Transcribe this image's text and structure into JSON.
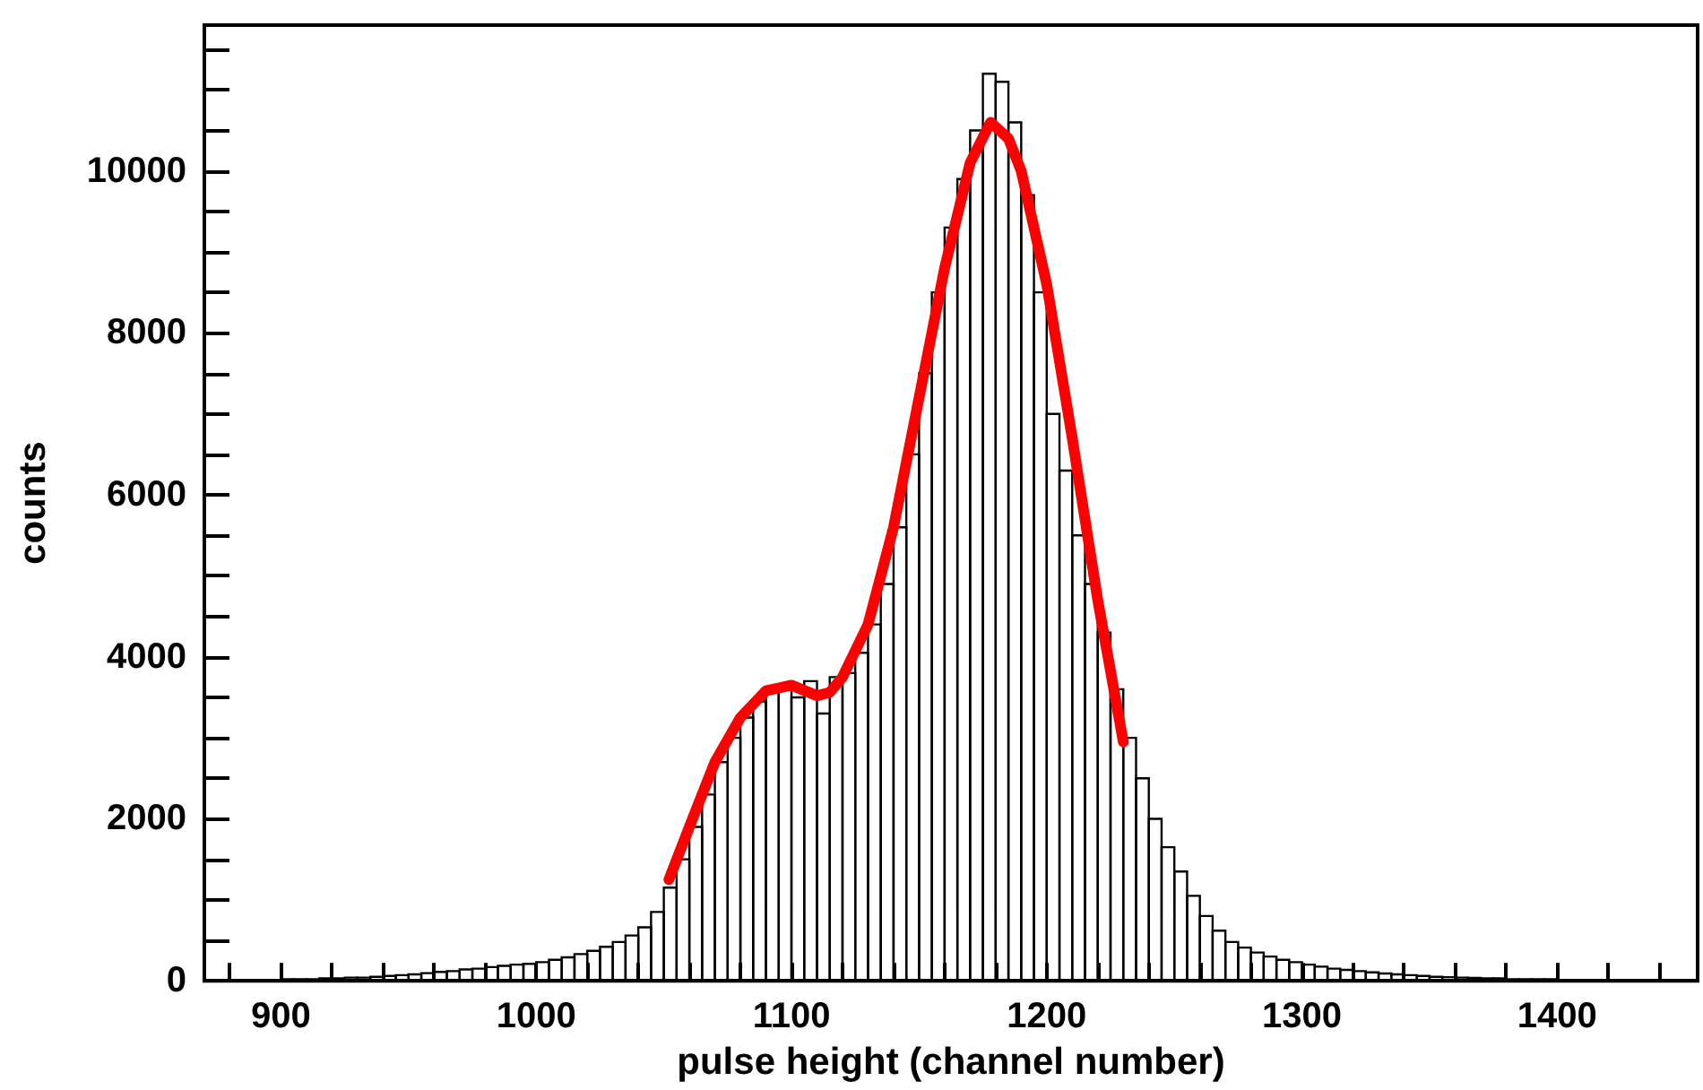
{
  "chart_data": {
    "type": "histogram",
    "xlabel": "pulse height (channel number)",
    "ylabel": "counts",
    "color": "#000000",
    "bins": [
      870,
      875,
      880,
      885,
      890,
      895,
      900,
      905,
      910,
      915,
      920,
      925,
      930,
      935,
      940,
      945,
      950,
      955,
      960,
      965,
      970,
      975,
      980,
      985,
      990,
      995,
      1000,
      1005,
      1010,
      1015,
      1020,
      1025,
      1030,
      1035,
      1040,
      1045,
      1050,
      1055,
      1060,
      1065,
      1070,
      1075,
      1080,
      1085,
      1090,
      1095,
      1100,
      1105,
      1110,
      1115,
      1120,
      1125,
      1130,
      1135,
      1140,
      1145,
      1150,
      1155,
      1160,
      1165,
      1170,
      1175,
      1180,
      1185,
      1190,
      1195,
      1200,
      1205,
      1210,
      1215,
      1220,
      1225,
      1230,
      1235,
      1240,
      1245,
      1250,
      1255,
      1260,
      1265,
      1270,
      1275,
      1280,
      1285,
      1290,
      1295,
      1300,
      1305,
      1310,
      1315,
      1320,
      1325,
      1330,
      1335,
      1340,
      1345,
      1350,
      1355,
      1360,
      1365,
      1370,
      1375,
      1380,
      1385,
      1390,
      1395,
      1400,
      1405,
      1410,
      1415,
      1420,
      1425,
      1430,
      1435,
      1440,
      1445,
      1450,
      1455
    ],
    "values": [
      0,
      0,
      0,
      0,
      10,
      10,
      20,
      20,
      20,
      30,
      30,
      40,
      40,
      50,
      60,
      70,
      80,
      95,
      110,
      120,
      140,
      150,
      170,
      185,
      200,
      210,
      230,
      260,
      290,
      330,
      370,
      420,
      480,
      560,
      660,
      850,
      1150,
      1500,
      1900,
      2300,
      2700,
      3000,
      3250,
      3450,
      3600,
      3650,
      3500,
      3700,
      3300,
      3750,
      3800,
      4050,
      4400,
      4900,
      5600,
      6500,
      7500,
      8500,
      9300,
      9900,
      10500,
      11200,
      11100,
      10600,
      9700,
      8500,
      7000,
      6300,
      5500,
      4900,
      4300,
      3600,
      3000,
      2500,
      2000,
      1650,
      1350,
      1050,
      800,
      620,
      480,
      410,
      350,
      300,
      260,
      230,
      200,
      175,
      150,
      135,
      120,
      105,
      90,
      80,
      70,
      60,
      50,
      45,
      40,
      35,
      30,
      30,
      20,
      20,
      20,
      20,
      10,
      10,
      10,
      10,
      10,
      10,
      10,
      0,
      0,
      0,
      0
    ],
    "series": [
      {
        "type": "line",
        "color": "#ff0000",
        "x": [
          1052,
          1060,
          1070,
          1080,
          1090,
          1100,
          1110,
          1115,
          1120,
          1130,
          1140,
          1150,
          1160,
          1170,
          1178,
          1185,
          1190,
          1200,
          1210,
          1220,
          1230
        ],
        "values": [
          1250,
          1900,
          2700,
          3250,
          3580,
          3650,
          3520,
          3560,
          3750,
          4400,
          5600,
          7200,
          8800,
          10100,
          10600,
          10400,
          10000,
          8600,
          6700,
          4700,
          2950
        ]
      }
    ],
    "xlim": [
      870,
      1455
    ],
    "ylim": [
      0,
      11800
    ],
    "xticks": [
      {
        "value": 880,
        "label": null
      },
      900,
      {
        "value": 920,
        "label": null
      },
      {
        "value": 940,
        "label": null
      },
      {
        "value": 960,
        "label": null
      },
      {
        "value": 980,
        "label": null
      },
      1000,
      {
        "value": 1020,
        "label": null
      },
      {
        "value": 1040,
        "label": null
      },
      {
        "value": 1060,
        "label": null
      },
      {
        "value": 1080,
        "label": null
      },
      1100,
      {
        "value": 1120,
        "label": null
      },
      {
        "value": 1140,
        "label": null
      },
      {
        "value": 1160,
        "label": null
      },
      {
        "value": 1180,
        "label": null
      },
      1200,
      {
        "value": 1220,
        "label": null
      },
      {
        "value": 1240,
        "label": null
      },
      {
        "value": 1260,
        "label": null
      },
      {
        "value": 1280,
        "label": null
      },
      1300,
      {
        "value": 1320,
        "label": null
      },
      {
        "value": 1340,
        "label": null
      },
      {
        "value": 1360,
        "label": null
      },
      {
        "value": 1380,
        "label": null
      },
      1400,
      {
        "value": 1420,
        "label": null
      },
      {
        "value": 1440,
        "label": null
      }
    ],
    "yticks": [
      0,
      {
        "value": 500,
        "label": null
      },
      {
        "value": 1000,
        "label": null
      },
      {
        "value": 1500,
        "label": null
      },
      2000,
      {
        "value": 2500,
        "label": null
      },
      {
        "value": 3000,
        "label": null
      },
      {
        "value": 3500,
        "label": null
      },
      4000,
      {
        "value": 4500,
        "label": null
      },
      {
        "value": 5000,
        "label": null
      },
      {
        "value": 5500,
        "label": null
      },
      6000,
      {
        "value": 6500,
        "label": null
      },
      {
        "value": 7000,
        "label": null
      },
      {
        "value": 7500,
        "label": null
      },
      8000,
      {
        "value": 8500,
        "label": null
      },
      {
        "value": 9000,
        "label": null
      },
      {
        "value": 9500,
        "label": null
      },
      10000,
      {
        "value": 10500,
        "label": null
      },
      {
        "value": 11000,
        "label": null
      },
      {
        "value": 11500,
        "label": null
      }
    ]
  }
}
